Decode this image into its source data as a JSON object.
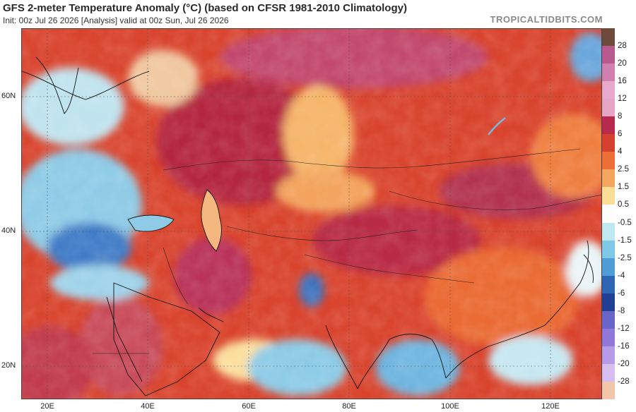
{
  "header": {
    "title": "GFS 2-meter Temperature Anomaly (°C) (based on CFSR 1981-2010 Climatology)",
    "subtitle": "Init: 00z Jul 26 2026   [Analysis]   valid at 00z Sun, Jul 26 2026",
    "brand": "TROPICALTIDBITS.COM"
  },
  "map": {
    "lat_labels": [
      "60N",
      "40N",
      "20N"
    ],
    "lon_labels": [
      "20E",
      "40E",
      "60E",
      "80E",
      "100E",
      "120E"
    ]
  },
  "colorbar": {
    "levels": [
      {
        "label": "28",
        "color": "#6e4a3a"
      },
      {
        "label": "20",
        "color": "#b85a8e"
      },
      {
        "label": "16",
        "color": "#d17fae"
      },
      {
        "label": "12",
        "color": "#e8a9cd"
      },
      {
        "label": "8",
        "color": "#e6a5c5"
      },
      {
        "label": "6",
        "color": "#b72a4e"
      },
      {
        "label": "4",
        "color": "#d5412e"
      },
      {
        "label": "2.5",
        "color": "#ec7036"
      },
      {
        "label": "1.5",
        "color": "#f5a65e"
      },
      {
        "label": "0.5",
        "color": "#fbdd96"
      },
      {
        "label": "-0.5",
        "color": "#fefefe"
      },
      {
        "label": "-1.5",
        "color": "#bfe8f0"
      },
      {
        "label": "-2.5",
        "color": "#7fc8e8"
      },
      {
        "label": "-4",
        "color": "#4f9fd6"
      },
      {
        "label": "-6",
        "color": "#2f66b3"
      },
      {
        "label": "-8",
        "color": "#1f3f94"
      },
      {
        "label": "-12",
        "color": "#6a66c9"
      },
      {
        "label": "-16",
        "color": "#8f78d8"
      },
      {
        "label": "-20",
        "color": "#b69be6"
      },
      {
        "label": "-28",
        "color": "#d6bff0"
      }
    ],
    "bottom_color": "#f2c6a8"
  }
}
